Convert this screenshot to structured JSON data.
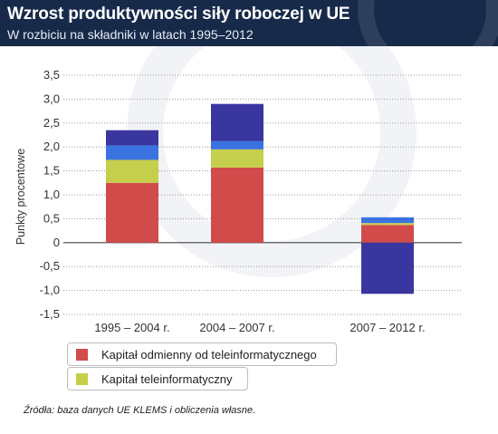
{
  "header": {
    "title": "Wzrost produktywności siły roboczej w UE",
    "subtitle": "W rozbiciu na składniki w latach 1995–2012"
  },
  "chart_data": {
    "type": "bar",
    "stacked": true,
    "categories": [
      "1995 – 2004 r.",
      "2004 – 2007 r.",
      "2007 – 2012 r."
    ],
    "ylabel": "Punkty procentowe",
    "ylim": [
      -1.5,
      3.5
    ],
    "yticks": [
      "3,5",
      "3,0",
      "2,5",
      "2,0",
      "1,5",
      "1,0",
      "0,5",
      "0",
      "-0,5",
      "-1,0",
      "-1,5"
    ],
    "grid": "horizontal dotted",
    "series": [
      {
        "name": "Kapitał odmienny od teleinformatycznego",
        "color": "#d14b4b",
        "values": [
          1.25,
          1.57,
          0.37
        ]
      },
      {
        "name": "Kapitał teleinformatyczny",
        "color": "#c5cf4b",
        "values": [
          0.48,
          0.38,
          0.04
        ]
      },
      {
        "color": "#3a73e0",
        "values": [
          0.3,
          0.17,
          0.12
        ]
      },
      {
        "color": "#3a36a0",
        "values": [
          0.32,
          0.78,
          -1.07
        ]
      }
    ]
  },
  "legend": [
    {
      "label": "Kapitał odmienny od teleinformatycznego",
      "color": "#d14b4b"
    },
    {
      "label": "Kapitał teleinformatyczny",
      "color": "#c5cf4b"
    }
  ],
  "source": "Źródła: baza danych UE KLEMS i obliczenia własne."
}
